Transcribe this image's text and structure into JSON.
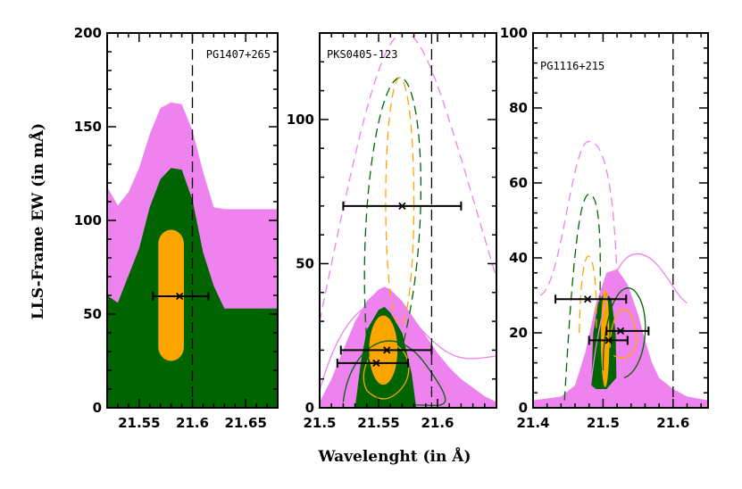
{
  "chart_data": {
    "type": "contour",
    "xlabel": "Wavelenght (in Å)",
    "ylabel": "LLS-Frame EW (in mÅ)",
    "colors": {
      "outer": "#ee82ee",
      "middle": "#006400",
      "inner": "#ffa500",
      "errorbar": "#000000"
    },
    "panels": [
      {
        "label": "PG1407+265",
        "xlim": [
          21.52,
          21.68
        ],
        "ylim": [
          0,
          200
        ],
        "xticks": [
          "21.55",
          "21.6",
          "21.65"
        ],
        "yticks": [
          "0",
          "50",
          "100",
          "150",
          "200"
        ],
        "vline": 21.6,
        "filled": {
          "outer": [
            [
              21.52,
              118
            ],
            [
              21.53,
              108
            ],
            [
              21.54,
              115
            ],
            [
              21.55,
              128
            ],
            [
              21.56,
              146
            ],
            [
              21.57,
              160
            ],
            [
              21.58,
              163
            ],
            [
              21.59,
              162
            ],
            [
              21.6,
              148
            ],
            [
              21.61,
              126
            ],
            [
              21.62,
              107
            ],
            [
              21.63,
              106
            ],
            [
              21.68,
              106
            ]
          ],
          "middle": [
            [
              21.52,
              60
            ],
            [
              21.53,
              56
            ],
            [
              21.55,
              85
            ],
            [
              21.56,
              107
            ],
            [
              21.57,
              122
            ],
            [
              21.58,
              128
            ],
            [
              21.59,
              127
            ],
            [
              21.6,
              111
            ],
            [
              21.61,
              83
            ],
            [
              21.62,
              65
            ],
            [
              21.63,
              53
            ],
            [
              21.68,
              53
            ]
          ],
          "inner": {
            "cx": 21.58,
            "cy": 60,
            "rx": 0.012,
            "ry": 35
          }
        },
        "points": [
          {
            "x": 21.588,
            "y": 59.5,
            "xerr": [
              21.563,
              21.615
            ],
            "marker": "x"
          }
        ]
      },
      {
        "label": "PKS0405-123",
        "xlim": [
          21.5,
          21.65
        ],
        "ylim": [
          0,
          130
        ],
        "xticks": [
          "21.5",
          "21.55",
          "21.6"
        ],
        "yticks": [
          "0",
          "50",
          "100"
        ],
        "vline": 21.595,
        "filled": {
          "outer_peak": [
            21.555,
            42
          ],
          "middle_peak": [
            21.555,
            35
          ],
          "inner_peak": [
            21.555,
            26
          ]
        },
        "dashed": [
          {
            "level": "outer",
            "x_range": [
              21.5,
              21.65
            ],
            "peak": [
              21.57,
              130
            ]
          },
          {
            "level": "middle",
            "x_range": [
              21.53,
              21.6
            ],
            "peak": [
              21.57,
              115
            ]
          },
          {
            "level": "inner",
            "center": [
              21.57,
              70
            ],
            "x_range": [
              21.555,
              21.58
            ],
            "y_range": [
              50,
              93
            ]
          }
        ],
        "points": [
          {
            "x": 21.57,
            "y": 70,
            "xerr": [
              21.52,
              21.62
            ],
            "marker": "x"
          },
          {
            "x": 21.557,
            "y": 20,
            "xerr": [
              21.518,
              21.595
            ],
            "marker": "x"
          },
          {
            "x": 21.548,
            "y": 15.5,
            "xerr": [
              21.515,
              21.575
            ],
            "marker": "x"
          }
        ]
      },
      {
        "label": "PG1116+215",
        "xlim": [
          21.4,
          21.65
        ],
        "ylim": [
          0,
          100
        ],
        "xticks": [
          "21.4",
          "21.5",
          "21.6"
        ],
        "yticks": [
          "0",
          "20",
          "40",
          "60",
          "80",
          "100"
        ],
        "vline": 21.6,
        "filled": {
          "outer_peak": [
            21.505,
            37
          ],
          "middle_peak": [
            21.505,
            31
          ],
          "inner_peak": [
            21.505,
            23
          ]
        },
        "dashed": [
          {
            "level": "outer",
            "peak": [
              21.48,
              71
            ]
          },
          {
            "level": "middle",
            "peak": [
              21.48,
              57
            ]
          },
          {
            "level": "inner",
            "peak": [
              21.48,
              42
            ]
          }
        ],
        "points": [
          {
            "x": 21.478,
            "y": 29,
            "xerr": [
              21.432,
              21.533
            ],
            "marker": "x"
          },
          {
            "x": 21.508,
            "y": 18,
            "xerr": [
              21.48,
              21.535
            ],
            "marker": "x"
          },
          {
            "x": 21.525,
            "y": 20.5,
            "xerr": [
              21.505,
              21.565
            ],
            "marker": "x"
          }
        ]
      }
    ]
  }
}
